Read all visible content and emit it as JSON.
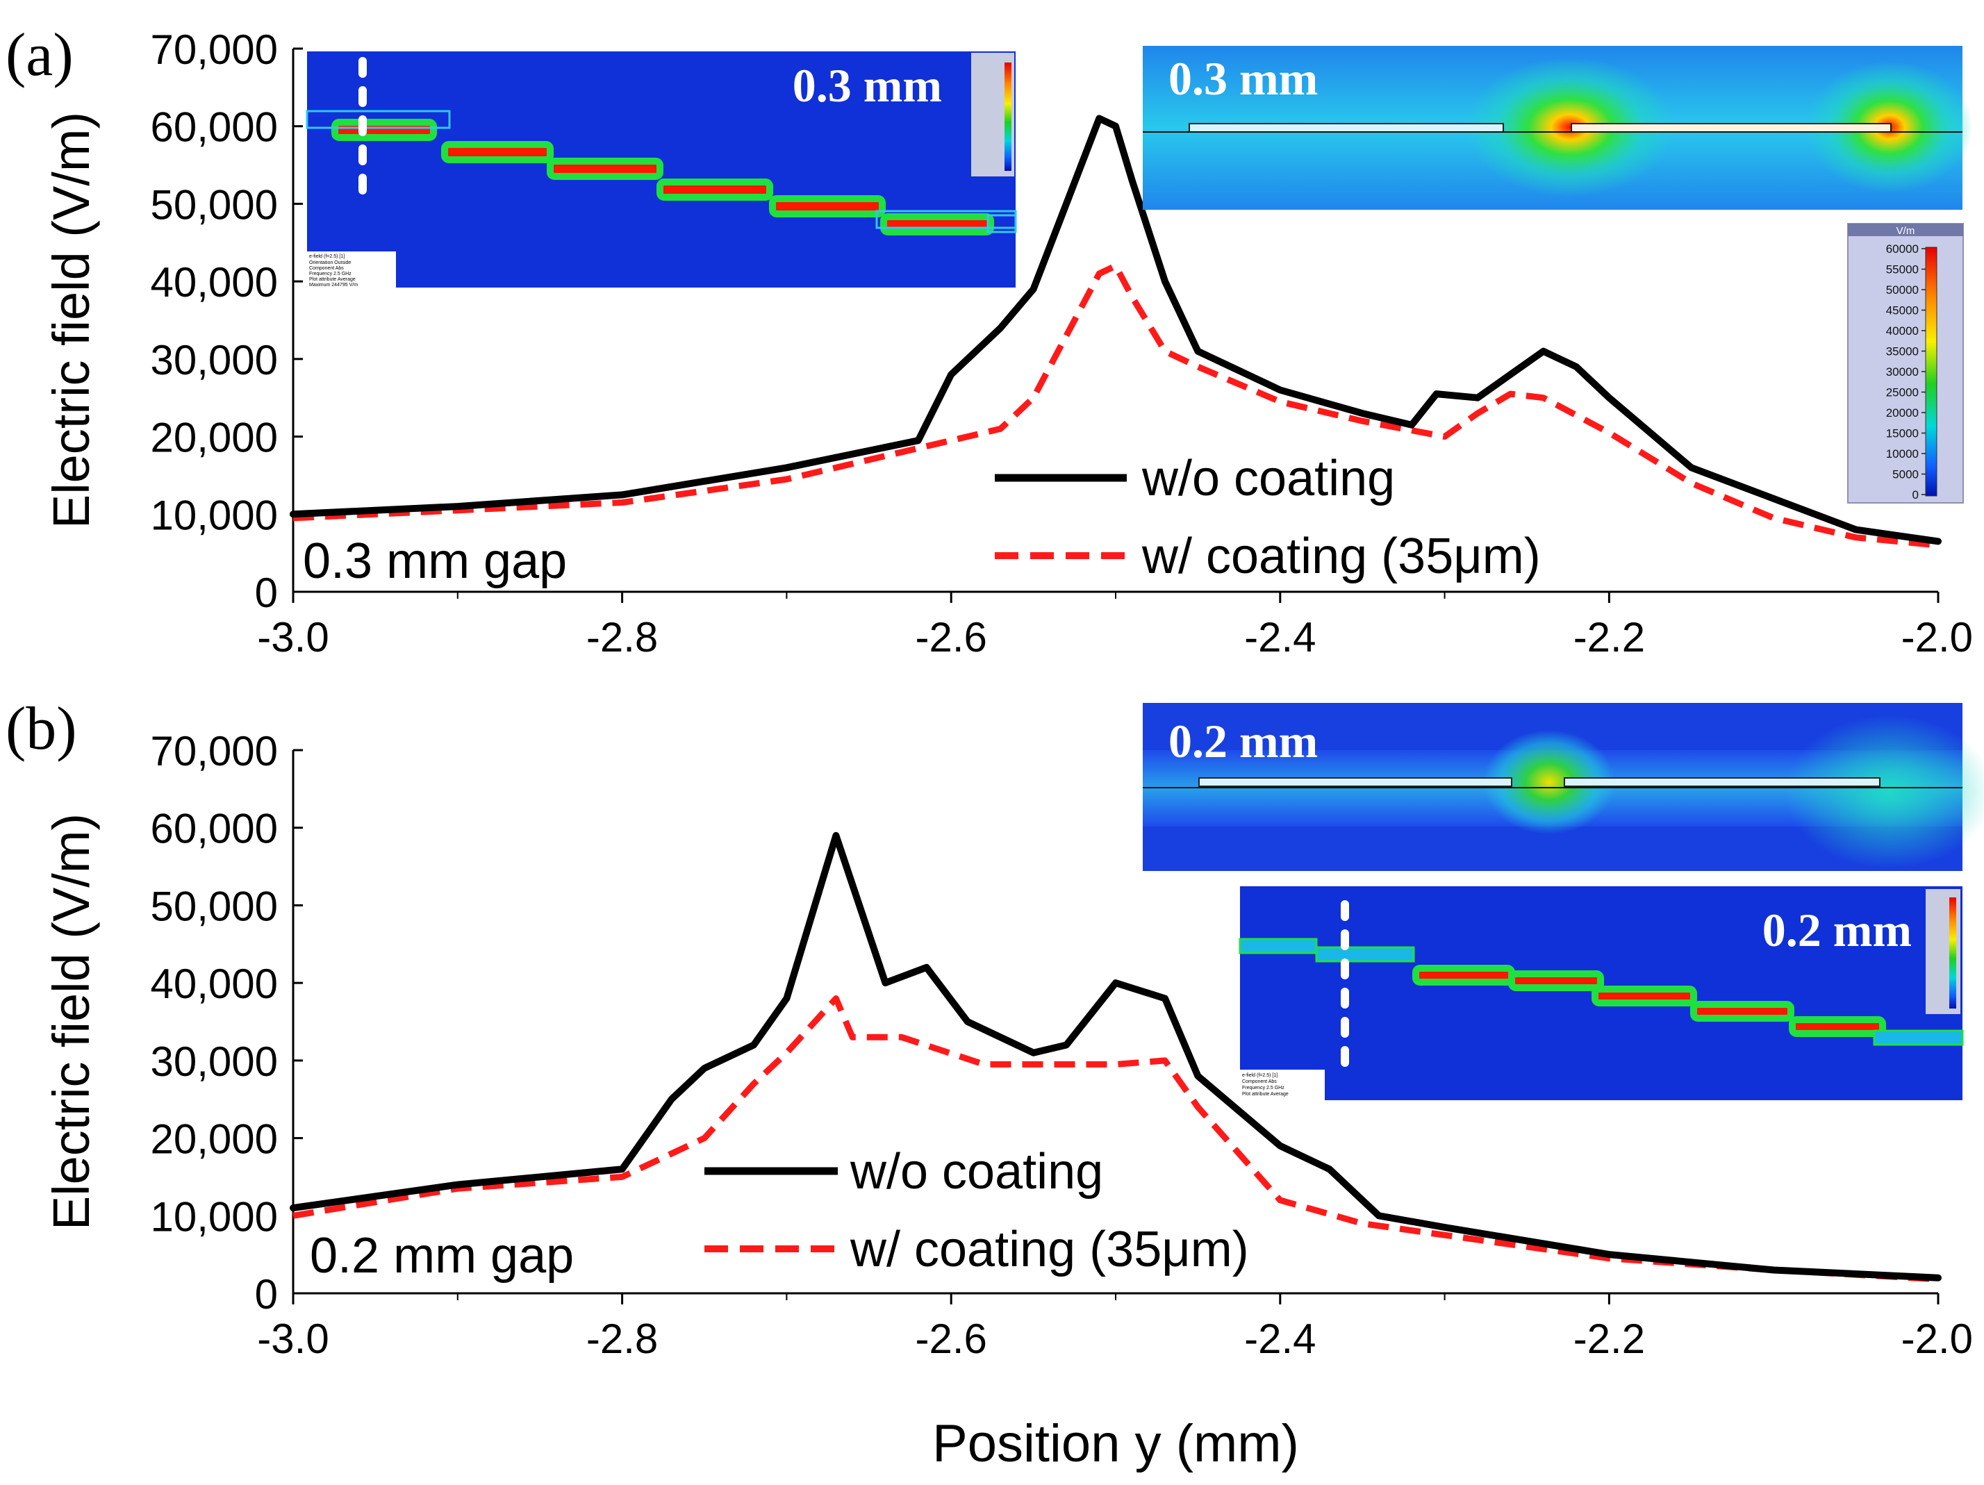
{
  "figure": {
    "xlabel": "Position y (mm)",
    "colors": {
      "without_coating": "#000000",
      "with_coating": "#ff1a1a",
      "field_background": "#1030d8",
      "field_hot": "#ff2000"
    }
  },
  "chart_data": [
    {
      "type": "line",
      "panel_label": "(a)",
      "annotation": "0.3 mm gap",
      "ylabel": "Electric field (V/m)",
      "xlim": [
        -3.0,
        -2.0
      ],
      "ylim": [
        0,
        70000
      ],
      "x_ticks": [
        "-3.0",
        "-2.8",
        "-2.6",
        "-2.4",
        "-2.2",
        "-2.0"
      ],
      "y_ticks": [
        "0",
        "10,000",
        "20,000",
        "30,000",
        "40,000",
        "50,000",
        "60,000",
        "70,000"
      ],
      "legend_position": "center",
      "series": [
        {
          "name": "w/o coating",
          "style": "solid",
          "x": [
            -3.0,
            -2.9,
            -2.8,
            -2.7,
            -2.62,
            -2.6,
            -2.57,
            -2.55,
            -2.53,
            -2.51,
            -2.5,
            -2.49,
            -2.47,
            -2.45,
            -2.4,
            -2.35,
            -2.32,
            -2.305,
            -2.28,
            -2.26,
            -2.24,
            -2.22,
            -2.2,
            -2.15,
            -2.1,
            -2.05,
            -2.0
          ],
          "y": [
            10000,
            11000,
            12500,
            16000,
            19500,
            28000,
            34000,
            39000,
            50000,
            61000,
            60000,
            53000,
            40000,
            31000,
            26000,
            23000,
            21500,
            25500,
            25000,
            28000,
            31000,
            29000,
            25000,
            16000,
            12000,
            8000,
            6500
          ]
        },
        {
          "name": "w/ coating (35μm)",
          "style": "dashed",
          "x": [
            -3.0,
            -2.9,
            -2.8,
            -2.7,
            -2.62,
            -2.57,
            -2.55,
            -2.53,
            -2.51,
            -2.5,
            -2.49,
            -2.47,
            -2.45,
            -2.4,
            -2.35,
            -2.3,
            -2.28,
            -2.26,
            -2.24,
            -2.2,
            -2.15,
            -2.1,
            -2.05,
            -2.0
          ],
          "y": [
            9500,
            10500,
            11500,
            14500,
            18500,
            21000,
            25000,
            33000,
            41000,
            42000,
            38000,
            31000,
            29000,
            24500,
            22000,
            20000,
            23000,
            25500,
            25000,
            20500,
            14000,
            9500,
            7000,
            6000
          ]
        }
      ],
      "insets": [
        {
          "label": "0.3 mm",
          "kind": "cross-section"
        },
        {
          "label": "0.3 mm",
          "kind": "oblique-view"
        }
      ],
      "colorbar_ticks": [
        "60000",
        "55000",
        "50000",
        "45000",
        "40000",
        "35000",
        "30000",
        "25000",
        "20000",
        "15000",
        "10000",
        "5000",
        "0"
      ],
      "colorbar_unit": "V/m",
      "field_info": {
        "title": "e-field (f=2.5) [1]",
        "rows": [
          "Orientation  Outside",
          "Component    Abs",
          "Frequency    2.5 GHz",
          "Plot attribute  Average",
          "Maximum     244795 V/m"
        ]
      }
    },
    {
      "type": "line",
      "panel_label": "(b)",
      "annotation": "0.2 mm gap",
      "ylabel": "Electric field (V/m)",
      "xlim": [
        -3.0,
        -2.0
      ],
      "ylim": [
        0,
        70000
      ],
      "x_ticks": [
        "-3.0",
        "-2.8",
        "-2.6",
        "-2.4",
        "-2.2",
        "-2.0"
      ],
      "y_ticks": [
        "0",
        "10,000",
        "20,000",
        "30,000",
        "40,000",
        "50,000",
        "60,000",
        "70,000"
      ],
      "legend_position": "center-left",
      "series": [
        {
          "name": "w/o coating",
          "style": "solid",
          "x": [
            -3.0,
            -2.9,
            -2.8,
            -2.77,
            -2.75,
            -2.72,
            -2.7,
            -2.67,
            -2.64,
            -2.615,
            -2.59,
            -2.55,
            -2.53,
            -2.5,
            -2.47,
            -2.45,
            -2.4,
            -2.37,
            -2.34,
            -2.3,
            -2.2,
            -2.1,
            -2.0
          ],
          "y": [
            11000,
            14000,
            16000,
            25000,
            29000,
            32000,
            38000,
            59000,
            40000,
            42000,
            35000,
            31000,
            32000,
            40000,
            38000,
            28000,
            19000,
            16000,
            10000,
            8500,
            5000,
            3000,
            2000
          ]
        },
        {
          "name": "w/ coating (35μm)",
          "style": "dashed",
          "x": [
            -3.0,
            -2.9,
            -2.8,
            -2.75,
            -2.72,
            -2.7,
            -2.67,
            -2.66,
            -2.63,
            -2.58,
            -2.5,
            -2.47,
            -2.45,
            -2.4,
            -2.35,
            -2.3,
            -2.2,
            -2.1,
            -2.0
          ],
          "y": [
            10000,
            13500,
            15000,
            20000,
            27000,
            31000,
            38000,
            33000,
            33000,
            29500,
            29500,
            30000,
            24000,
            12000,
            9000,
            7500,
            4500,
            3000,
            1800
          ]
        }
      ],
      "insets": [
        {
          "label": "0.2 mm",
          "kind": "cross-section"
        },
        {
          "label": "0.2 mm",
          "kind": "oblique-view"
        }
      ],
      "field_info": {
        "title": "e-field (f=2.5) [1]",
        "rows": [
          "Component    Abs",
          "Frequency    2.5 GHz",
          "Plot attribute  Average"
        ]
      }
    }
  ]
}
